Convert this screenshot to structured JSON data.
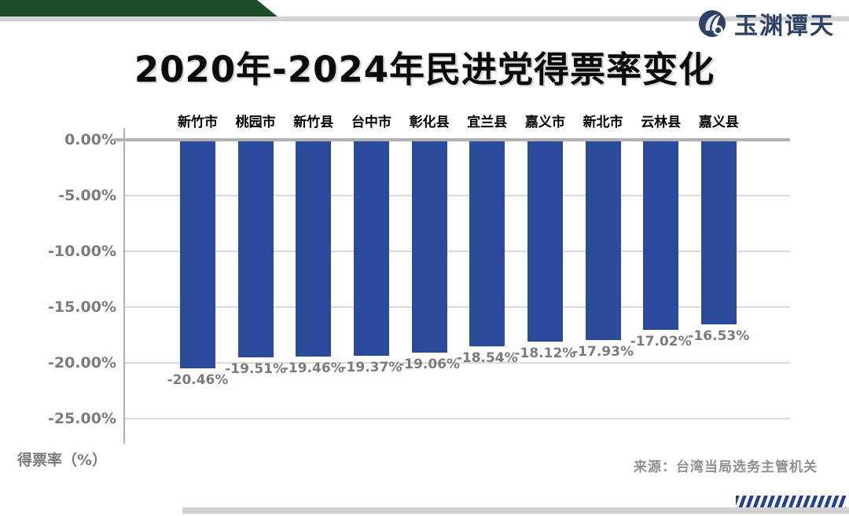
{
  "logo": {
    "text": "玉渊谭天",
    "color": "#2e4066"
  },
  "chart_data": {
    "type": "bar",
    "title": "2020年-2024年民进党得票率变化",
    "categories": [
      "新竹市",
      "桃园市",
      "新竹县",
      "台中市",
      "彰化县",
      "宜兰县",
      "嘉义市",
      "新北市",
      "云林县",
      "嘉义县"
    ],
    "values": [
      -20.46,
      -19.51,
      -19.46,
      -19.37,
      -19.06,
      -18.54,
      -18.12,
      -17.93,
      -17.02,
      -16.53
    ],
    "data_labels": [
      "-20.46%",
      "-19.51%",
      "-19.46%",
      "-19.37%",
      "-19.06%",
      "-18.54%",
      "-18.12%",
      "-17.93%",
      "-17.02%",
      "-16.53%"
    ],
    "xlabel": "",
    "ylabel": "得票率（%）",
    "yticks": [
      {
        "value": 0,
        "label": "0.00%"
      },
      {
        "value": -5,
        "label": "-5.00%"
      },
      {
        "value": -10,
        "label": "-10.00%"
      },
      {
        "value": -15,
        "label": "-15.00%"
      },
      {
        "value": -20,
        "label": "-20.00%"
      },
      {
        "value": -25,
        "label": "-25.00%"
      }
    ],
    "ylim": [
      -27,
      0
    ],
    "grid": "horizontal",
    "legend_position": "none",
    "bar_color": "#2a4a9c"
  },
  "footer": {
    "source": "来源：台湾当局选务主管机关"
  },
  "colors": {
    "banner_green": "#1d4d2b",
    "strip_gray": "#d2d2d2",
    "bar_blue": "#2a4a9c",
    "stripe_blue": "#24409a",
    "axis_gray": "#b1b1b1",
    "grid_gray": "#dadada",
    "label_gray": "#7b7b7b",
    "logo_navy": "#2e4066"
  }
}
